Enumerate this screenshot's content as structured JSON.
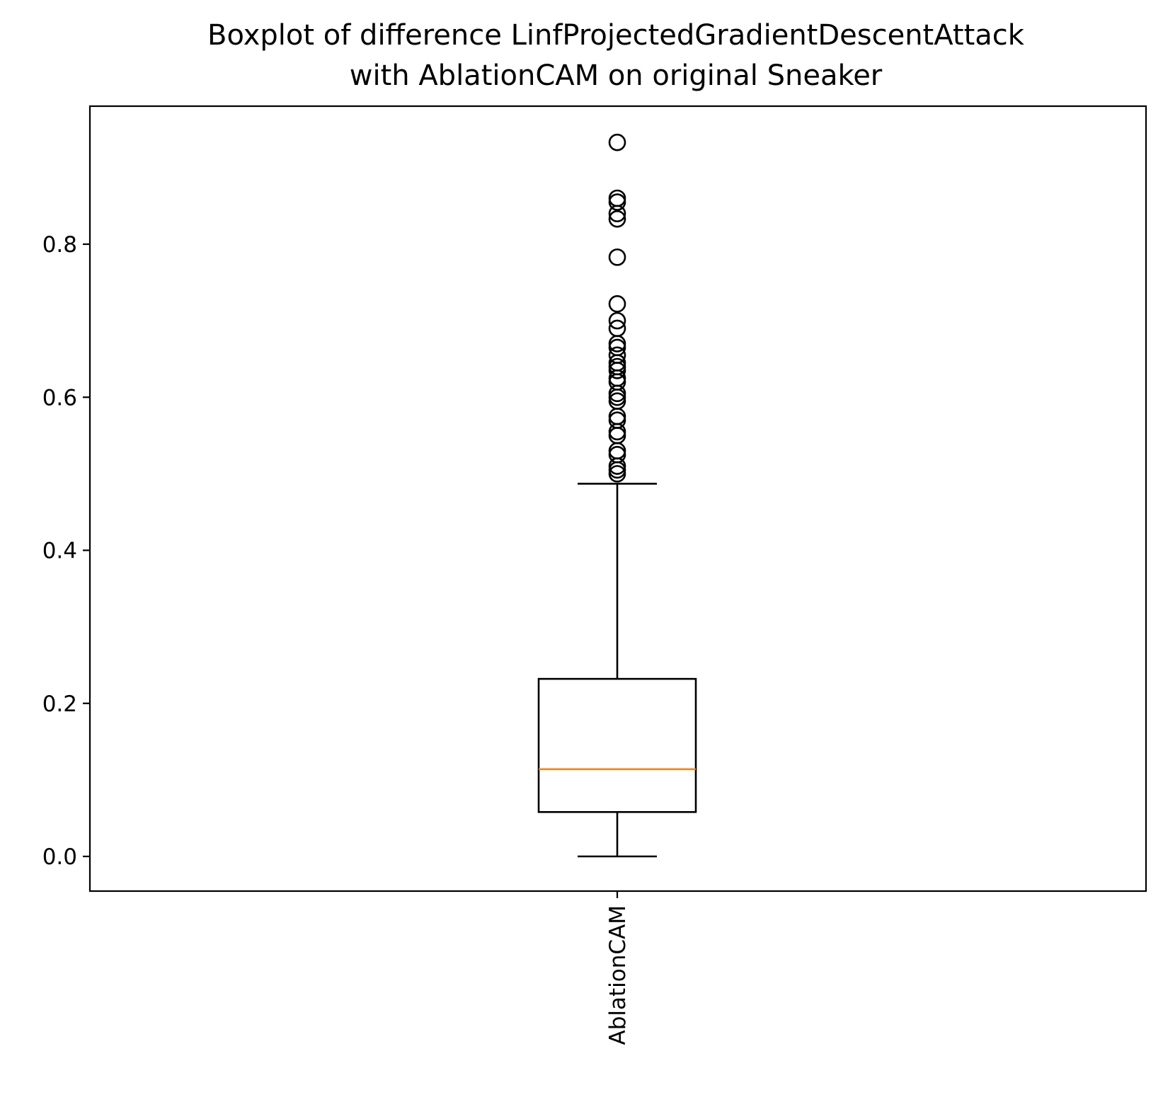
{
  "chart_data": {
    "type": "box",
    "title_lines": [
      "Boxplot of difference LinfProjectedGradientDescentAttack",
      "with AblationCAM on original Sneaker"
    ],
    "xlabel": "",
    "ylabel": "",
    "categories": [
      "AblationCAM"
    ],
    "ylim": [
      -0.045,
      0.98
    ],
    "yticks": [
      0.0,
      0.2,
      0.4,
      0.6,
      0.8
    ],
    "ytick_labels": [
      "0.0",
      "0.2",
      "0.4",
      "0.6",
      "0.8"
    ],
    "grid": false,
    "legend": "none",
    "box": {
      "name": "AblationCAM",
      "whisker_low": 0.0,
      "q1": 0.058,
      "median": 0.114,
      "q3": 0.232,
      "whisker_high": 0.487,
      "outliers": [
        0.5,
        0.505,
        0.51,
        0.525,
        0.53,
        0.55,
        0.555,
        0.57,
        0.575,
        0.595,
        0.6,
        0.605,
        0.62,
        0.625,
        0.635,
        0.64,
        0.645,
        0.655,
        0.665,
        0.67,
        0.69,
        0.7,
        0.722,
        0.783,
        0.833,
        0.84,
        0.855,
        0.86,
        0.933
      ]
    },
    "colors": {
      "box": "#000000",
      "median": "#ff7f0e",
      "outlier_edge": "#000000"
    }
  }
}
